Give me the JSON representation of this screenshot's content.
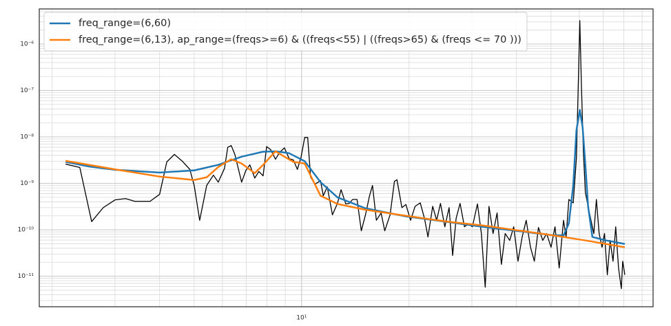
{
  "chart_data": {
    "type": "line",
    "xscale": "log",
    "yscale": "log",
    "grid": true,
    "minor_grid": true,
    "legend": "upper left",
    "xlim": [
      1.84,
      96.6
    ],
    "ylim": [
      2.2e-12,
      5.7e-06
    ],
    "xticks": [
      {
        "value": 10,
        "label": "10¹"
      }
    ],
    "yticks": [
      {
        "value": 1e-06,
        "label": "10⁻⁶"
      },
      {
        "value": 1e-07,
        "label": "10⁻⁷"
      },
      {
        "value": 1e-08,
        "label": "10⁻⁸"
      },
      {
        "value": 1e-09,
        "label": "10⁻⁹"
      },
      {
        "value": 1e-10,
        "label": "10⁻¹⁰"
      },
      {
        "value": 1e-11,
        "label": "10⁻¹¹"
      }
    ],
    "series": [
      {
        "color": "#000000",
        "x": [
          2.18,
          2.39,
          2.58,
          2.78,
          3.0,
          3.21,
          3.41,
          3.65,
          3.76,
          4.0,
          4.19,
          4.4,
          4.63,
          4.86,
          5.0,
          5.18,
          5.42,
          5.66,
          5.84,
          6.08,
          6.21,
          6.35,
          6.5,
          6.79,
          6.98,
          7.16,
          7.39,
          7.59,
          7.8,
          7.98,
          8.19,
          8.45,
          8.67,
          8.95,
          9.23,
          9.48,
          9.73,
          9.96,
          10.2,
          10.4,
          10.6,
          10.9,
          11.3,
          11.5,
          11.8,
          12.2,
          12.6,
          12.9,
          13.3,
          13.6,
          13.9,
          14.3,
          14.7,
          15.1,
          15.5,
          15.8,
          16.2,
          16.7,
          17.1,
          17.7,
          18.2,
          18.5,
          19.1,
          19.6,
          20.2,
          20.8,
          21.5,
          22.1,
          22.6,
          23.3,
          23.9,
          24.5,
          25.2,
          25.9,
          26.5,
          27.1,
          27.8,
          28.6,
          29.3,
          30.1,
          31.1,
          31.9,
          32.7,
          33.5,
          34.4,
          35.3,
          36.3,
          37.2,
          38.3,
          39.3,
          40.4,
          41.5,
          42.6,
          43.8,
          44.9,
          46.1,
          47.4,
          48.6,
          50.0,
          51.3,
          52.7,
          54.2,
          55.1,
          56.1,
          57.7,
          58.9,
          59.7,
          60.2,
          60.8,
          61.6,
          62.4,
          63.5,
          64.7,
          65.9,
          67.0,
          68.2,
          69.5,
          70.6,
          71.9,
          73.2,
          74.6,
          75.9,
          77.3,
          78.7,
          79.4,
          80.5
        ],
        "values": [
          2.6e-09,
          2.2e-09,
          1.5e-10,
          3e-10,
          4.4e-10,
          4.7e-10,
          4.1e-10,
          4.1e-10,
          4.1e-10,
          5.8e-10,
          2.9e-09,
          4.2e-09,
          3e-09,
          2e-09,
          9e-10,
          1.6e-10,
          9e-10,
          1.5e-09,
          1.06e-09,
          2.1e-09,
          6e-09,
          6.5e-09,
          4.2e-09,
          1.06e-09,
          1.9e-09,
          2.5e-09,
          1.3e-09,
          1.8e-09,
          1.45e-09,
          6.2e-09,
          5.3e-09,
          3.3e-09,
          4.6e-09,
          5.8e-09,
          3.4e-09,
          3.2e-09,
          2e-09,
          3.6e-09,
          9.7e-09,
          9.7e-09,
          1.35e-09,
          9.6e-10,
          1.14e-09,
          5.4e-10,
          8.4e-10,
          2.1e-10,
          3.7e-10,
          7.3e-10,
          3.6e-10,
          3.7e-10,
          4.5e-10,
          4.5e-10,
          9.5e-11,
          2.1e-10,
          5.4e-10,
          9e-10,
          1.6e-10,
          2.3e-10,
          9.5e-11,
          2.1e-10,
          1.1e-09,
          1.2e-09,
          3e-10,
          3.5e-10,
          1.6e-10,
          3.2e-10,
          3.8e-10,
          1.75e-10,
          7e-11,
          3.2e-10,
          1.6e-10,
          3.7e-10,
          1.16e-10,
          3e-10,
          2.8e-11,
          1.75e-10,
          3.7e-10,
          1.16e-10,
          1.33e-10,
          1.16e-10,
          3.6e-10,
          8.3e-11,
          5.8e-12,
          3.2e-10,
          8.3e-11,
          2.3e-10,
          1.8e-11,
          8.3e-11,
          5.9e-11,
          1.16e-10,
          2.1e-11,
          7e-11,
          1.6e-10,
          4.2e-11,
          2.1e-11,
          1.12e-10,
          5.9e-11,
          8.3e-11,
          4.2e-11,
          1.16e-10,
          1.5e-11,
          1.6e-10,
          7e-11,
          4.5e-10,
          3.8e-10,
          3.5e-09,
          2.1e-07,
          3.2e-06,
          1.5e-07,
          4.9e-09,
          6.4e-10,
          3.2e-10,
          1.6e-10,
          8.3e-11,
          4.5e-10,
          8.3e-11,
          4.2e-11,
          8.3e-11,
          1.07e-11,
          5.9e-11,
          2.1e-11,
          1.16e-10,
          1.5e-11,
          5.4e-12,
          2.1e-11,
          1.07e-11
        ]
      },
      {
        "name": "freq_range=(6,60)",
        "color": "#1f77b4",
        "x": [
          2.18,
          2.54,
          3.0,
          4.0,
          5.0,
          5.84,
          6.79,
          7.8,
          8.45,
          9.23,
          10.2,
          11.3,
          12.6,
          15.1,
          19.6,
          25.6,
          32.1,
          40.0,
          50.0,
          54.2,
          56.1,
          57.7,
          58.9,
          60.2,
          61.3,
          62.4,
          63.5,
          65.3,
          71.3,
          80.5
        ],
        "values": [
          2.9e-09,
          2.3e-09,
          1.96e-09,
          1.71e-09,
          1.9e-09,
          2.5e-09,
          3.75e-09,
          4.8e-09,
          4.9e-09,
          4.45e-09,
          3e-09,
          1.06e-09,
          5e-10,
          2.9e-10,
          1.94e-10,
          1.48e-10,
          1.16e-10,
          9.5e-11,
          7.7e-11,
          7.5e-11,
          1.38e-10,
          9e-10,
          1.37e-08,
          3.8e-08,
          1.62e-08,
          2.5e-09,
          3.2e-10,
          7e-11,
          5.9e-11,
          4.95e-11
        ]
      },
      {
        "name": "freq_range=(6,13), ap_range=(freqs>=6) & ((freqs<55) | ((freqs>65) & (freqs <= 70 )))",
        "color": "#ff7f0e",
        "x": [
          2.18,
          2.54,
          3.0,
          4.0,
          5.0,
          5.42,
          5.84,
          6.35,
          6.79,
          7.39,
          7.8,
          8.45,
          8.95,
          9.48,
          10.2,
          11.3,
          12.6,
          15.1,
          19.6,
          25.6,
          32.1,
          40.0,
          50.0,
          62.4,
          80.5
        ],
        "values": [
          3.05e-09,
          2.5e-09,
          2e-09,
          1.4e-09,
          1.18e-09,
          1.35e-09,
          2.25e-09,
          3.3e-09,
          2.67e-09,
          1.66e-09,
          2.5e-09,
          4.9e-09,
          3.75e-09,
          2.9e-09,
          2.67e-09,
          5.4e-10,
          3.6e-10,
          2.7e-10,
          2e-10,
          1.5e-10,
          1.24e-10,
          9.8e-11,
          7.7e-11,
          5.9e-11,
          4.2e-11
        ]
      }
    ]
  }
}
